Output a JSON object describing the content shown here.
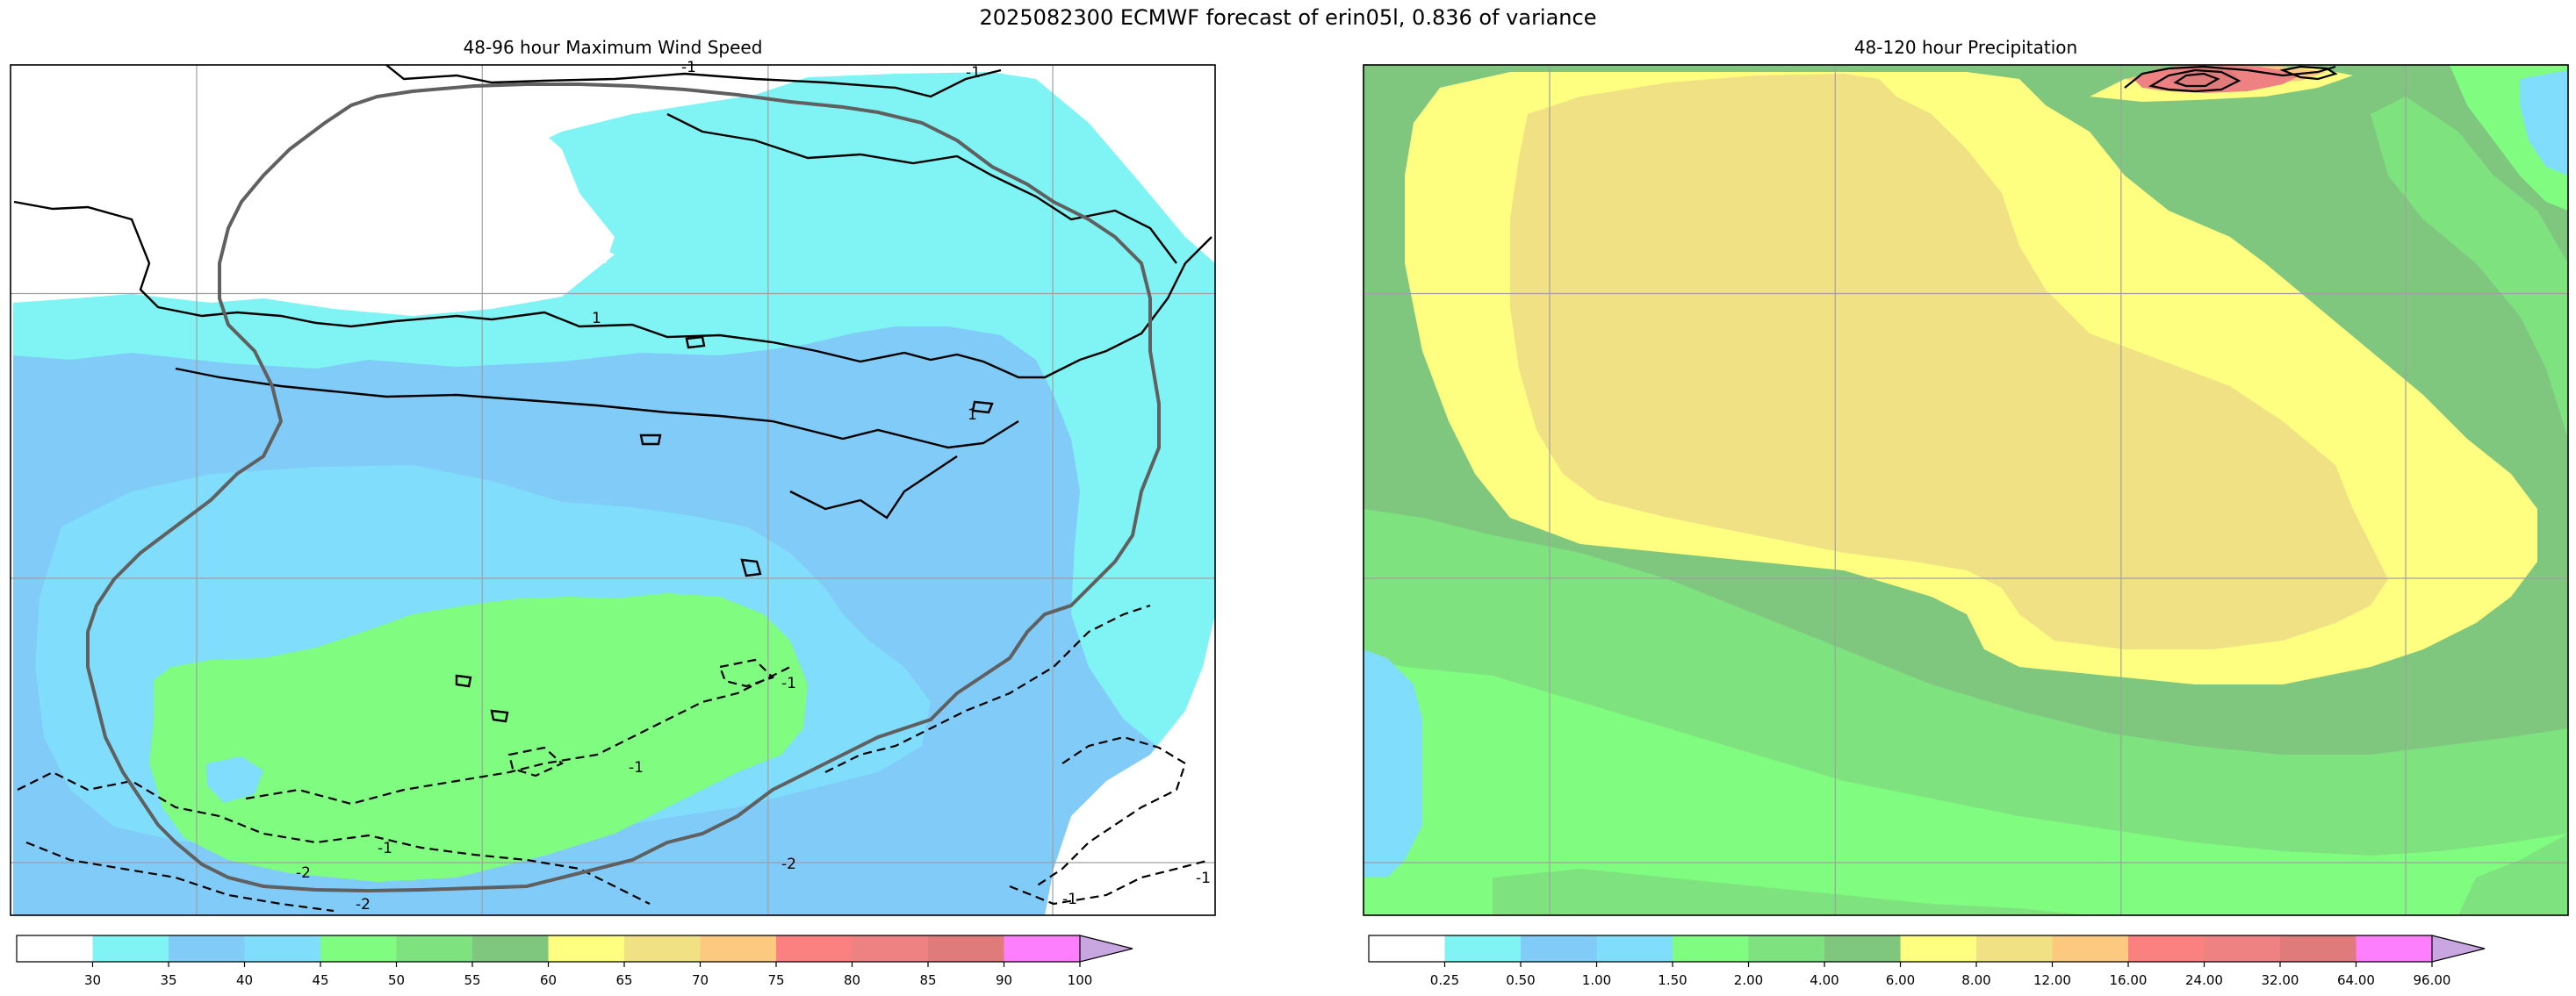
{
  "figure_title": "2025082300 ECMWF forecast of erin05l, 0.836 of variance",
  "colors": {
    "background": "#ffffff",
    "grid": "#a0a0a0",
    "contour": "#000000",
    "cone": "#606060"
  },
  "chart_data": [
    {
      "type": "heatmap",
      "title": "48-96 hour Maximum Wind Speed",
      "grid": true,
      "legend": "bottom",
      "colorbar": {
        "extend": "max",
        "boundaries": [
          30,
          35,
          40,
          45,
          50,
          55,
          60,
          65,
          70,
          75,
          80,
          85,
          90,
          100
        ],
        "tick_labels": [
          "30",
          "35",
          "40",
          "45",
          "50",
          "55",
          "60",
          "65",
          "70",
          "75",
          "80",
          "85",
          "90",
          "100"
        ],
        "colors": [
          "#ffffff",
          "#80f4f4",
          "#80cbf7",
          "#80ddfb",
          "#80fd80",
          "#7ee37e",
          "#7fc77f",
          "#feff80",
          "#efe184",
          "#fdc87f",
          "#fb8080",
          "#ee8181",
          "#df7b7b",
          "#fe7ffe",
          "#c8a6df"
        ]
      },
      "contours": {
        "levels": [
          -2,
          -1,
          1
        ],
        "labels": [
          "-1",
          "-2",
          "1",
          "-1",
          "-1",
          "-1",
          "1",
          "-1",
          "-2",
          "-2",
          "-1",
          "-1"
        ]
      }
    },
    {
      "type": "heatmap",
      "title": "48-120 hour Precipitation",
      "grid": true,
      "legend": "bottom",
      "colorbar": {
        "extend": "max",
        "boundaries": [
          0,
          0.25,
          0.5,
          1,
          1.5,
          2,
          4,
          6,
          8,
          12,
          16,
          24,
          32,
          64,
          96
        ],
        "tick_labels": [
          "0.25",
          "0.50",
          "1.00",
          "1.50",
          "2.00",
          "4.00",
          "6.00",
          "8.00",
          "12.00",
          "16.00",
          "24.00",
          "32.00",
          "64.00",
          "96.00"
        ],
        "colors": [
          "#ffffff",
          "#80f4f4",
          "#80cbf7",
          "#80ddfb",
          "#80fd80",
          "#7ee37e",
          "#7fc77f",
          "#feff80",
          "#efe184",
          "#fdc87f",
          "#fb8080",
          "#ee8181",
          "#df7b7b",
          "#fe7ffe",
          "#c8a6df"
        ]
      }
    }
  ]
}
